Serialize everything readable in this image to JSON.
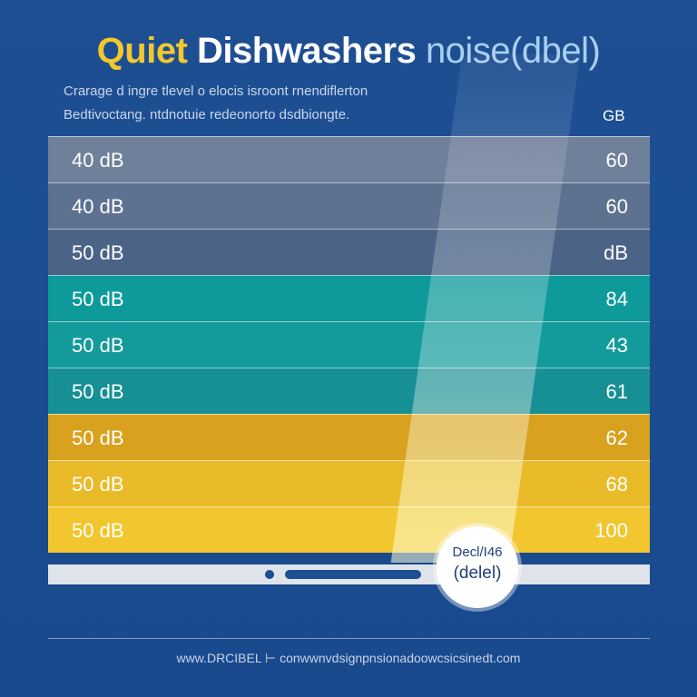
{
  "title": {
    "part1": "Quiet",
    "part2": "Dishwashers",
    "part3": "noise(dbel)"
  },
  "subtitle": {
    "line1": "Crarage d ingre tlevel o elocis isroont rnendiflerton",
    "line2": "Bedtivoctang. ntdnotuie redeonorto dsdbiongte."
  },
  "table": {
    "header_right": "GB",
    "rows": [
      [
        "40 dB",
        "60"
      ],
      [
        "40 dB",
        "60"
      ],
      [
        "50 dB",
        "dB"
      ],
      [
        "50 dB",
        "84"
      ],
      [
        "50 dB",
        "43"
      ],
      [
        "50 dB",
        "61"
      ],
      [
        "50 dB",
        "62"
      ],
      [
        "50 dB",
        "68"
      ],
      [
        "50 dB",
        "100"
      ]
    ]
  },
  "badge": {
    "line1": "Decl/I46",
    "line2": "(delel)"
  },
  "footer": "www.DRCIBEL ⊢ conwwnvdsignpnsionadoowcsicsinedt.com"
}
